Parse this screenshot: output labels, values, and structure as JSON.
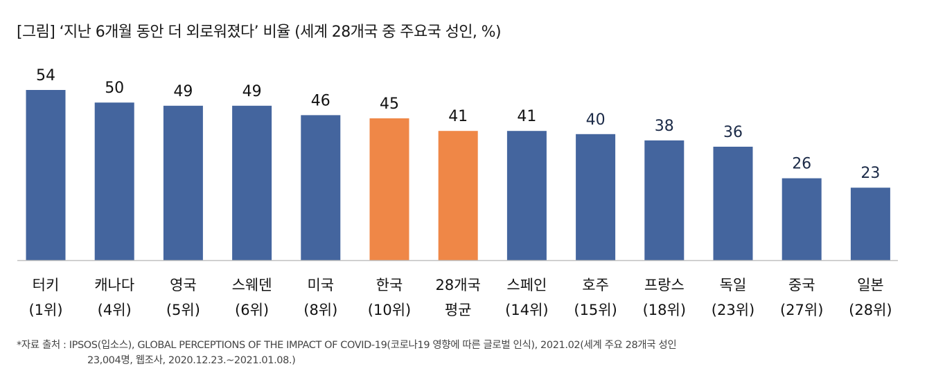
{
  "chart_data": {
    "type": "bar",
    "title": "[그림] ‘지난 6개월 동안 더 외로워졌다’ 비율 (세계 28개국 중 주요국 성인, %)",
    "xlabel": "",
    "ylabel": "",
    "ylim": [
      0,
      54
    ],
    "grid": false,
    "categories": [
      {
        "name": "터키",
        "rank": "(1위)"
      },
      {
        "name": "캐나다",
        "rank": "(4위)"
      },
      {
        "name": "영국",
        "rank": "(5위)"
      },
      {
        "name": "스웨덴",
        "rank": "(6위)"
      },
      {
        "name": "미국",
        "rank": "(8위)"
      },
      {
        "name": "한국",
        "rank": "(10위)"
      },
      {
        "name": "28개국",
        "rank": "평균"
      },
      {
        "name": "스페인",
        "rank": "(14위)"
      },
      {
        "name": "호주",
        "rank": "(15위)"
      },
      {
        "name": "프랑스",
        "rank": "(18위)"
      },
      {
        "name": "독일",
        "rank": "(23위)"
      },
      {
        "name": "중국",
        "rank": "(27위)"
      },
      {
        "name": "일본",
        "rank": "(28위)"
      }
    ],
    "values": [
      54,
      50,
      49,
      49,
      46,
      45,
      41,
      41,
      40,
      38,
      36,
      26,
      23
    ],
    "highlight": [
      false,
      false,
      false,
      false,
      false,
      true,
      true,
      false,
      false,
      false,
      false,
      false,
      false
    ],
    "colors": {
      "default": "#44659E",
      "highlight": "#EF8747",
      "axis": "#BFBFBF",
      "label": "#111111",
      "label_alt": "#1B2A47"
    }
  },
  "source": {
    "line1": "*자료 출처 : IPSOS(입소스), GLOBAL PERCEPTIONS OF THE IMPACT OF COVID-19(코로나19 영향에 따른 글로벌 인식), 2021.02(세계 주요 28개국 성인",
    "line2": "23,004명, 웹조사, 2020.12.23.~2021.01.08.)"
  }
}
